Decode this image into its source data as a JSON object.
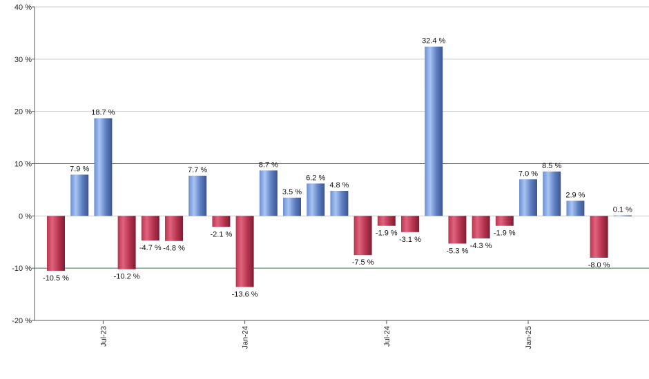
{
  "chart_data": {
    "type": "bar",
    "title": "",
    "xlabel": "",
    "ylabel": "",
    "ylim": [
      -20,
      40
    ],
    "y_ticks": [
      -20,
      -10,
      0,
      10,
      20,
      30,
      40
    ],
    "y_tick_labels": [
      "-20 %",
      "-10 %",
      "0 %",
      "10 %",
      "20 %",
      "30 %",
      "40 %"
    ],
    "threshold_lines": [
      10,
      -10
    ],
    "threshold_color": "#2e7d32",
    "positive_color": "#7d9fdc",
    "negative_color": "#c43d5b",
    "values": [
      -10.5,
      7.9,
      18.7,
      -10.2,
      -4.7,
      -4.8,
      7.7,
      -2.1,
      -13.6,
      8.7,
      3.5,
      6.2,
      4.8,
      -7.5,
      -1.9,
      -3.1,
      32.4,
      -5.3,
      -4.3,
      -1.9,
      7.0,
      8.5,
      2.9,
      -8.0,
      0.1
    ],
    "value_labels": [
      "-10.5 %",
      "7.9 %",
      "18.7 %",
      "-10.2 %",
      "-4.7 %",
      "-4.8 %",
      "7.7 %",
      "-2.1 %",
      "-13.6 %",
      "8.7 %",
      "3.5 %",
      "6.2 %",
      "4.8 %",
      "-7.5 %",
      "-1.9 %",
      "-3.1 %",
      "32.4 %",
      "-5.3 %",
      "-4.3 %",
      "-1.9 %",
      "7.0 %",
      "8.5 %",
      "2.9 %",
      "-8.0 %",
      "0.1 %"
    ],
    "x_tick_labels": [
      {
        "label": "Jul-23",
        "index": 2
      },
      {
        "label": "Jan-24",
        "index": 8
      },
      {
        "label": "Jul-24",
        "index": 14
      },
      {
        "label": "Jan-25",
        "index": 20
      }
    ]
  }
}
